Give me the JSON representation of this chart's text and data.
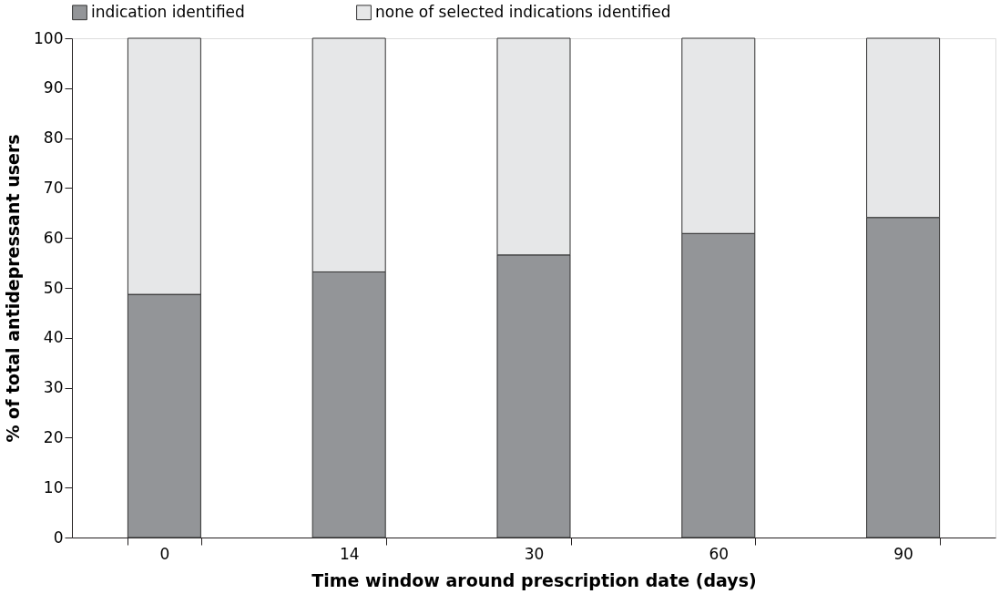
{
  "chart_data": {
    "type": "bar",
    "stacked": true,
    "xlabel": "Time window around prescription date (days)",
    "ylabel": "% of total antidepressant users",
    "categories": [
      "0",
      "14",
      "30",
      "60",
      "90"
    ],
    "series": [
      {
        "name": "indication identified",
        "color": "#939598",
        "values": [
          48.7,
          53.2,
          56.6,
          60.9,
          64.1
        ]
      },
      {
        "name": "none of selected indications identified",
        "color": "#e6e7e8",
        "values": [
          51.3,
          46.8,
          43.4,
          39.1,
          35.9
        ]
      }
    ],
    "ylim": [
      0,
      100
    ],
    "yticks": [
      0,
      10,
      20,
      30,
      40,
      50,
      60,
      70,
      80,
      90,
      100
    ],
    "grid": false,
    "legend": "top"
  }
}
